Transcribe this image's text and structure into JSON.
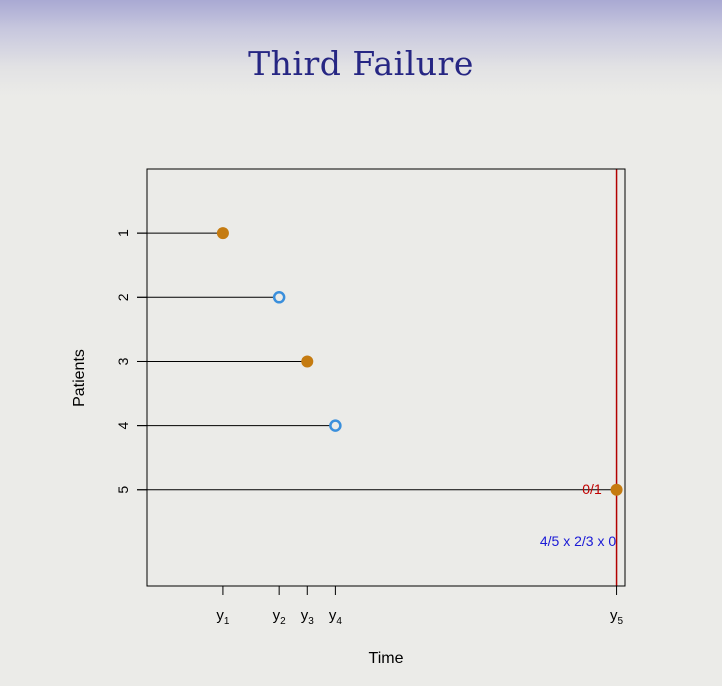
{
  "slide": {
    "title": "Third Failure"
  },
  "chart_data": {
    "type": "scatter",
    "xlabel": "Time",
    "ylabel": "Patients",
    "x_ticks": [
      {
        "label": "y",
        "sub": "1",
        "x": 1
      },
      {
        "label": "y",
        "sub": "2",
        "x": 2
      },
      {
        "label": "y",
        "sub": "3",
        "x": 2.5
      },
      {
        "label": "y",
        "sub": "4",
        "x": 3
      },
      {
        "label": "y",
        "sub": "5",
        "x": 8
      }
    ],
    "patients": [
      {
        "id": "1",
        "y": 1,
        "time": 1,
        "status": "failure"
      },
      {
        "id": "2",
        "y": 2,
        "time": 2,
        "status": "censored"
      },
      {
        "id": "3",
        "y": 3,
        "time": 2.5,
        "status": "failure"
      },
      {
        "id": "4",
        "y": 4,
        "time": 3,
        "status": "censored"
      },
      {
        "id": "5",
        "y": 5,
        "time": 8,
        "status": "failure"
      }
    ],
    "xlim": [
      -0.35,
      8.15
    ],
    "ylim": [
      0,
      6.5
    ],
    "y_ticks": [
      "1",
      "2",
      "3",
      "4",
      "5"
    ],
    "marker_line": {
      "x": 8,
      "color": "#b20000"
    },
    "annotations": [
      {
        "text": "0/1",
        "color": "#c00000"
      },
      {
        "text": "4/5 x 2/3 x 0",
        "color": "#1a1ad6"
      }
    ],
    "colors": {
      "failure": "#c57b10",
      "censored": "#3a8fdc",
      "line": "#000000"
    },
    "grid": false
  }
}
